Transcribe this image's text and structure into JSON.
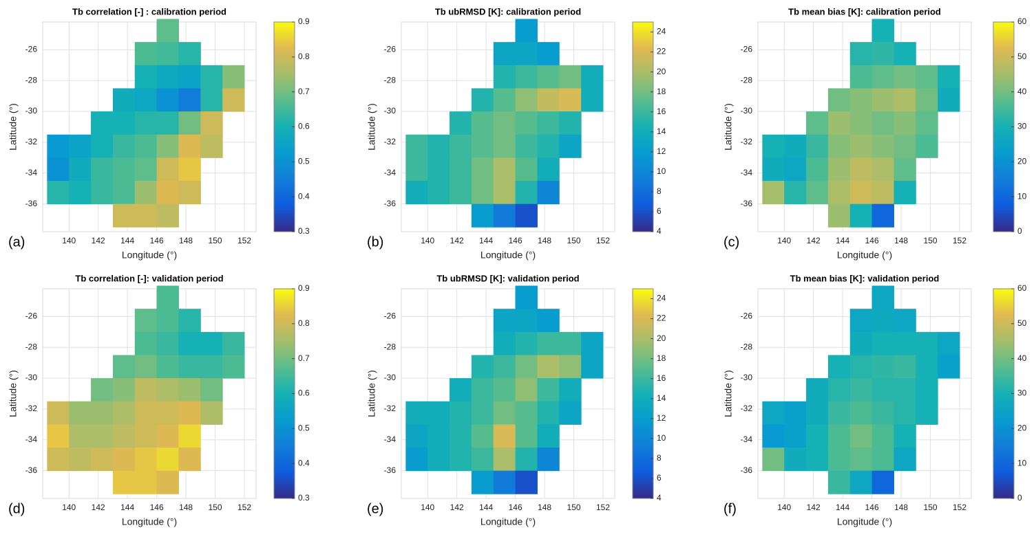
{
  "chart_data": [
    {
      "type": "heatmap",
      "title": "Tb correlation [-] : calibration period",
      "label": "(a)",
      "x_label": "Longitude (°)",
      "y_label": "Latitude (°)",
      "colormap": "parula",
      "grid": true,
      "xlim": [
        138.2,
        152.8
      ],
      "ylim": [
        -37.8,
        -24.2
      ],
      "xticks": [
        140,
        142,
        144,
        146,
        148,
        150,
        152
      ],
      "yticks": [
        -36,
        -34,
        -32,
        -30,
        -28,
        -26
      ],
      "clim": [
        0.3,
        0.9
      ],
      "cticks": [
        0.3,
        0.4,
        0.5,
        0.6,
        0.7,
        0.8,
        0.9
      ],
      "x": [
        139.25,
        140.75,
        142.25,
        143.75,
        145.25,
        146.75,
        148.25,
        149.75,
        151.25
      ],
      "y": [
        -24.75,
        -26.25,
        -27.75,
        -29.25,
        -30.75,
        -32.25,
        -33.75,
        -35.25,
        -36.75
      ],
      "values": [
        [
          null,
          null,
          null,
          null,
          null,
          0.68,
          null,
          null,
          null
        ],
        [
          null,
          null,
          null,
          null,
          0.66,
          0.65,
          0.62,
          null,
          null
        ],
        [
          null,
          null,
          null,
          null,
          0.6,
          0.57,
          0.55,
          0.62,
          0.72
        ],
        [
          null,
          null,
          null,
          0.58,
          0.56,
          0.5,
          0.45,
          0.62,
          0.8
        ],
        [
          null,
          null,
          0.6,
          0.6,
          0.62,
          0.62,
          0.7,
          0.8,
          null
        ],
        [
          0.52,
          0.55,
          0.6,
          0.64,
          0.66,
          0.72,
          0.82,
          0.78,
          null
        ],
        [
          0.5,
          0.58,
          0.64,
          0.66,
          0.68,
          0.8,
          0.84,
          null,
          null
        ],
        [
          0.62,
          0.6,
          0.64,
          0.66,
          0.74,
          0.82,
          0.8,
          null,
          null
        ],
        [
          null,
          null,
          null,
          0.8,
          0.8,
          0.78,
          null,
          null,
          null
        ]
      ]
    },
    {
      "type": "heatmap",
      "title": "Tb ubRMSD [K]: calibration period",
      "label": "(b)",
      "x_label": "Longitude (°)",
      "y_label": "Latitude (°)",
      "colormap": "parula",
      "grid": true,
      "xlim": [
        138.2,
        152.8
      ],
      "ylim": [
        -37.8,
        -24.2
      ],
      "xticks": [
        140,
        142,
        144,
        146,
        148,
        150,
        152
      ],
      "yticks": [
        -36,
        -34,
        -32,
        -30,
        -28,
        -26
      ],
      "clim": [
        4,
        25
      ],
      "cticks": [
        4,
        6,
        8,
        10,
        12,
        14,
        16,
        18,
        20,
        22,
        24
      ],
      "x": [
        139.25,
        140.75,
        142.25,
        143.75,
        145.25,
        146.75,
        148.25,
        149.75,
        151.25
      ],
      "y": [
        -24.75,
        -26.25,
        -27.75,
        -29.25,
        -30.75,
        -32.25,
        -33.75,
        -35.25,
        -36.75
      ],
      "values": [
        [
          null,
          null,
          null,
          null,
          null,
          12,
          null,
          null,
          null
        ],
        [
          null,
          null,
          null,
          null,
          13,
          13,
          12,
          null,
          null
        ],
        [
          null,
          null,
          null,
          null,
          15,
          16,
          17,
          18,
          14
        ],
        [
          null,
          null,
          null,
          15,
          17,
          19,
          21,
          22,
          14
        ],
        [
          null,
          null,
          15,
          17,
          18,
          17,
          16,
          15,
          null
        ],
        [
          16,
          15,
          16,
          17,
          18,
          16,
          15,
          13,
          null
        ],
        [
          16,
          15,
          16,
          18,
          20,
          17,
          14,
          null,
          null
        ],
        [
          14,
          15,
          16,
          18,
          20,
          15,
          10,
          null,
          null
        ],
        [
          null,
          null,
          null,
          12,
          9,
          6,
          null,
          null,
          null
        ]
      ]
    },
    {
      "type": "heatmap",
      "title": "Tb mean bias [K]: calibration period",
      "label": "(c)",
      "x_label": "Longitude (°)",
      "y_label": "Latitude (°)",
      "colormap": "parula",
      "grid": true,
      "xlim": [
        138.2,
        152.8
      ],
      "ylim": [
        -37.8,
        -24.2
      ],
      "xticks": [
        140,
        142,
        144,
        146,
        148,
        150,
        152
      ],
      "yticks": [
        -36,
        -34,
        -32,
        -30,
        -28,
        -26
      ],
      "clim": [
        0,
        60
      ],
      "cticks": [
        0,
        10,
        20,
        30,
        40,
        50,
        60
      ],
      "x": [
        139.25,
        140.75,
        142.25,
        143.75,
        145.25,
        146.75,
        148.25,
        149.75,
        151.25
      ],
      "y": [
        -24.75,
        -26.25,
        -27.75,
        -29.25,
        -30.75,
        -32.25,
        -33.75,
        -35.25,
        -36.75
      ],
      "values": [
        [
          null,
          null,
          null,
          null,
          null,
          30,
          null,
          null,
          null
        ],
        [
          null,
          null,
          null,
          null,
          32,
          33,
          30,
          null,
          null
        ],
        [
          null,
          null,
          null,
          null,
          36,
          38,
          40,
          38,
          30
        ],
        [
          null,
          null,
          null,
          40,
          42,
          44,
          46,
          40,
          28
        ],
        [
          null,
          null,
          38,
          44,
          42,
          40,
          42,
          38,
          null
        ],
        [
          30,
          28,
          34,
          42,
          44,
          42,
          40,
          36,
          null
        ],
        [
          28,
          26,
          36,
          44,
          48,
          46,
          38,
          null,
          null
        ],
        [
          45,
          32,
          38,
          46,
          50,
          48,
          30,
          null,
          null
        ],
        [
          null,
          null,
          null,
          44,
          30,
          10,
          null,
          null,
          null
        ]
      ]
    },
    {
      "type": "heatmap",
      "title": "Tb correlation [-]: validation period",
      "label": "(d)",
      "x_label": "Longitude (°)",
      "y_label": "Latitude (°)",
      "colormap": "parula",
      "grid": true,
      "xlim": [
        138.2,
        152.8
      ],
      "ylim": [
        -37.8,
        -24.2
      ],
      "xticks": [
        140,
        142,
        144,
        146,
        148,
        150,
        152
      ],
      "yticks": [
        -36,
        -34,
        -32,
        -30,
        -28,
        -26
      ],
      "clim": [
        0.3,
        0.9
      ],
      "cticks": [
        0.3,
        0.4,
        0.5,
        0.6,
        0.7,
        0.8,
        0.9
      ],
      "x": [
        139.25,
        140.75,
        142.25,
        143.75,
        145.25,
        146.75,
        148.25,
        149.75,
        151.25
      ],
      "y": [
        -24.75,
        -26.25,
        -27.75,
        -29.25,
        -30.75,
        -32.25,
        -33.75,
        -35.25,
        -36.75
      ],
      "values": [
        [
          null,
          null,
          null,
          null,
          null,
          0.66,
          null,
          null,
          null
        ],
        [
          null,
          null,
          null,
          null,
          0.68,
          0.66,
          0.62,
          null,
          null
        ],
        [
          null,
          null,
          null,
          null,
          0.66,
          0.64,
          0.6,
          0.6,
          0.64
        ],
        [
          null,
          null,
          null,
          0.68,
          0.7,
          0.66,
          0.64,
          0.64,
          0.66
        ],
        [
          null,
          null,
          0.7,
          0.72,
          0.78,
          0.76,
          0.74,
          0.7,
          null
        ],
        [
          0.8,
          0.74,
          0.74,
          0.76,
          0.8,
          0.8,
          0.82,
          0.76,
          null
        ],
        [
          0.84,
          0.76,
          0.76,
          0.78,
          0.8,
          0.82,
          0.86,
          null,
          null
        ],
        [
          0.8,
          0.78,
          0.8,
          0.82,
          0.84,
          0.86,
          0.82,
          null,
          null
        ],
        [
          null,
          null,
          null,
          0.84,
          0.84,
          0.82,
          null,
          null,
          null
        ]
      ]
    },
    {
      "type": "heatmap",
      "title": "Tb ubRMSD [K]: validation period",
      "label": "(e)",
      "x_label": "Longitude (°)",
      "y_label": "Latitude (°)",
      "colormap": "parula",
      "grid": true,
      "xlim": [
        138.2,
        152.8
      ],
      "ylim": [
        -37.8,
        -24.2
      ],
      "xticks": [
        140,
        142,
        144,
        146,
        148,
        150,
        152
      ],
      "yticks": [
        -36,
        -34,
        -32,
        -30,
        -28,
        -26
      ],
      "clim": [
        4,
        25
      ],
      "cticks": [
        4,
        6,
        8,
        10,
        12,
        14,
        16,
        18,
        20,
        22,
        24
      ],
      "x": [
        139.25,
        140.75,
        142.25,
        143.75,
        145.25,
        146.75,
        148.25,
        149.75,
        151.25
      ],
      "y": [
        -24.75,
        -26.25,
        -27.75,
        -29.25,
        -30.75,
        -32.25,
        -33.75,
        -35.25,
        -36.75
      ],
      "values": [
        [
          null,
          null,
          null,
          null,
          null,
          12,
          null,
          null,
          null
        ],
        [
          null,
          null,
          null,
          null,
          13,
          13,
          12,
          null,
          null
        ],
        [
          null,
          null,
          null,
          null,
          14,
          15,
          16,
          16,
          13
        ],
        [
          null,
          null,
          null,
          15,
          16,
          18,
          20,
          19,
          13
        ],
        [
          null,
          null,
          14,
          16,
          17,
          19,
          16,
          14,
          null
        ],
        [
          14,
          14,
          15,
          16,
          18,
          17,
          15,
          13,
          null
        ],
        [
          13,
          14,
          15,
          17,
          22,
          17,
          14,
          null,
          null
        ],
        [
          12,
          14,
          15,
          16,
          20,
          15,
          10,
          null,
          null
        ],
        [
          null,
          null,
          null,
          12,
          9,
          6,
          null,
          null,
          null
        ]
      ]
    },
    {
      "type": "heatmap",
      "title": "Tb mean bias [K]: validation period",
      "label": "(f)",
      "x_label": "Longitude (°)",
      "y_label": "Latitude (°)",
      "colormap": "parula",
      "grid": true,
      "xlim": [
        138.2,
        152.8
      ],
      "ylim": [
        -37.8,
        -24.2
      ],
      "xticks": [
        140,
        142,
        144,
        146,
        148,
        150,
        152
      ],
      "yticks": [
        -36,
        -34,
        -32,
        -30,
        -28,
        -26
      ],
      "clim": [
        0,
        60
      ],
      "cticks": [
        0,
        10,
        20,
        30,
        40,
        50,
        60
      ],
      "x": [
        139.25,
        140.75,
        142.25,
        143.75,
        145.25,
        146.75,
        148.25,
        149.75,
        151.25
      ],
      "y": [
        -24.75,
        -26.25,
        -27.75,
        -29.25,
        -30.75,
        -32.25,
        -33.75,
        -35.25,
        -36.75
      ],
      "values": [
        [
          null,
          null,
          null,
          null,
          null,
          26,
          null,
          null,
          null
        ],
        [
          null,
          null,
          null,
          null,
          26,
          27,
          26,
          null,
          null
        ],
        [
          null,
          null,
          null,
          null,
          28,
          30,
          30,
          30,
          26
        ],
        [
          null,
          null,
          null,
          30,
          32,
          33,
          34,
          30,
          24
        ],
        [
          null,
          null,
          28,
          32,
          34,
          32,
          32,
          30,
          null
        ],
        [
          26,
          24,
          28,
          34,
          36,
          34,
          32,
          30,
          null
        ],
        [
          22,
          24,
          30,
          36,
          40,
          36,
          30,
          null,
          null
        ],
        [
          40,
          28,
          30,
          36,
          38,
          36,
          26,
          null,
          null
        ],
        [
          null,
          null,
          null,
          34,
          26,
          10,
          null,
          null,
          null
        ]
      ]
    }
  ]
}
